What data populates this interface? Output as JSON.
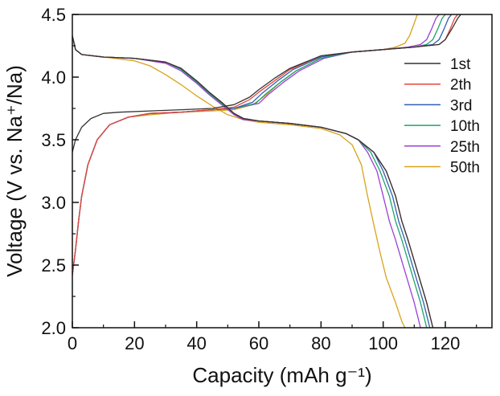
{
  "chart_data": {
    "type": "line",
    "title": "",
    "xlabel": "Capacity (mAh g⁻¹)",
    "ylabel": "Voltage (V vs. Na⁺/Na)",
    "xlim": [
      0,
      135
    ],
    "ylim": [
      2.0,
      4.5
    ],
    "x_ticks": [
      "0",
      "20",
      "40",
      "60",
      "80",
      "100",
      "120"
    ],
    "y_ticks": [
      "2.0",
      "2.5",
      "3.0",
      "3.5",
      "4.0",
      "4.5"
    ],
    "grid": false,
    "legend_position": "right",
    "series": [
      {
        "name": "1st",
        "color": "#333333",
        "charge": [
          [
            0,
            3.4
          ],
          [
            1,
            3.5
          ],
          [
            3,
            3.6
          ],
          [
            6,
            3.67
          ],
          [
            10,
            3.71
          ],
          [
            15,
            3.72
          ],
          [
            25,
            3.73
          ],
          [
            35,
            3.74
          ],
          [
            45,
            3.75
          ],
          [
            52,
            3.78
          ],
          [
            57,
            3.84
          ],
          [
            60,
            3.9
          ],
          [
            65,
            3.99
          ],
          [
            70,
            4.07
          ],
          [
            80,
            4.17
          ],
          [
            90,
            4.2
          ],
          [
            100,
            4.22
          ],
          [
            110,
            4.24
          ],
          [
            118,
            4.26
          ],
          [
            120,
            4.3
          ],
          [
            122,
            4.38
          ],
          [
            124,
            4.47
          ],
          [
            125,
            4.5
          ]
        ],
        "discharge": [
          [
            0,
            4.33
          ],
          [
            1,
            4.22
          ],
          [
            3,
            4.18
          ],
          [
            10,
            4.16
          ],
          [
            20,
            4.15
          ],
          [
            30,
            4.12
          ],
          [
            35,
            4.07
          ],
          [
            40,
            3.97
          ],
          [
            44,
            3.88
          ],
          [
            48,
            3.8
          ],
          [
            52,
            3.71
          ],
          [
            55,
            3.67
          ],
          [
            60,
            3.65
          ],
          [
            70,
            3.63
          ],
          [
            80,
            3.6
          ],
          [
            88,
            3.55
          ],
          [
            92,
            3.5
          ],
          [
            97,
            3.4
          ],
          [
            101,
            3.25
          ],
          [
            104,
            3.05
          ],
          [
            106,
            2.85
          ],
          [
            108,
            2.7
          ],
          [
            111,
            2.45
          ],
          [
            114,
            2.2
          ],
          [
            116,
            2.0
          ]
        ]
      },
      {
        "name": "2th",
        "color": "#e8453c",
        "charge": [
          [
            0,
            2.42
          ],
          [
            1,
            2.62
          ],
          [
            2,
            2.85
          ],
          [
            3,
            3.05
          ],
          [
            5,
            3.3
          ],
          [
            8,
            3.5
          ],
          [
            12,
            3.62
          ],
          [
            18,
            3.68
          ],
          [
            25,
            3.71
          ],
          [
            35,
            3.72
          ],
          [
            45,
            3.74
          ],
          [
            52,
            3.76
          ],
          [
            57,
            3.82
          ],
          [
            60,
            3.88
          ],
          [
            65,
            3.97
          ],
          [
            70,
            4.06
          ],
          [
            80,
            4.17
          ],
          [
            90,
            4.2
          ],
          [
            100,
            4.22
          ],
          [
            110,
            4.24
          ],
          [
            118,
            4.26
          ],
          [
            120,
            4.3
          ],
          [
            121.5,
            4.38
          ],
          [
            123,
            4.47
          ],
          [
            124,
            4.5
          ]
        ],
        "discharge": [
          [
            0,
            4.33
          ],
          [
            1,
            4.22
          ],
          [
            3,
            4.18
          ],
          [
            10,
            4.16
          ],
          [
            20,
            4.15
          ],
          [
            30,
            4.12
          ],
          [
            35,
            4.07
          ],
          [
            40,
            3.97
          ],
          [
            44,
            3.88
          ],
          [
            48,
            3.8
          ],
          [
            52,
            3.71
          ],
          [
            55,
            3.67
          ],
          [
            60,
            3.65
          ],
          [
            70,
            3.63
          ],
          [
            80,
            3.6
          ],
          [
            88,
            3.55
          ],
          [
            92,
            3.5
          ],
          [
            97,
            3.4
          ],
          [
            101,
            3.25
          ],
          [
            104,
            3.05
          ],
          [
            106,
            2.85
          ],
          [
            108,
            2.7
          ],
          [
            111,
            2.45
          ],
          [
            114,
            2.2
          ],
          [
            116,
            2.0
          ]
        ]
      },
      {
        "name": "3rd",
        "color": "#2f5fb3",
        "charge": [
          [
            0,
            2.42
          ],
          [
            1,
            2.62
          ],
          [
            2,
            2.85
          ],
          [
            3,
            3.05
          ],
          [
            5,
            3.3
          ],
          [
            8,
            3.5
          ],
          [
            12,
            3.62
          ],
          [
            18,
            3.68
          ],
          [
            25,
            3.71
          ],
          [
            35,
            3.72
          ],
          [
            45,
            3.74
          ],
          [
            52,
            3.75
          ],
          [
            58,
            3.8
          ],
          [
            61,
            3.87
          ],
          [
            66,
            3.97
          ],
          [
            71,
            4.06
          ],
          [
            80,
            4.16
          ],
          [
            90,
            4.2
          ],
          [
            100,
            4.22
          ],
          [
            110,
            4.24
          ],
          [
            116,
            4.26
          ],
          [
            118,
            4.3
          ],
          [
            119.5,
            4.38
          ],
          [
            121,
            4.47
          ],
          [
            122,
            4.5
          ]
        ],
        "discharge": [
          [
            0,
            4.33
          ],
          [
            1,
            4.22
          ],
          [
            3,
            4.18
          ],
          [
            10,
            4.16
          ],
          [
            20,
            4.15
          ],
          [
            30,
            4.12
          ],
          [
            35,
            4.07
          ],
          [
            40,
            3.97
          ],
          [
            44,
            3.88
          ],
          [
            48,
            3.8
          ],
          [
            52,
            3.71
          ],
          [
            55,
            3.67
          ],
          [
            60,
            3.65
          ],
          [
            70,
            3.63
          ],
          [
            80,
            3.6
          ],
          [
            88,
            3.55
          ],
          [
            92,
            3.5
          ],
          [
            97,
            3.4
          ],
          [
            100,
            3.25
          ],
          [
            103,
            3.05
          ],
          [
            105,
            2.85
          ],
          [
            107,
            2.7
          ],
          [
            110,
            2.45
          ],
          [
            113,
            2.2
          ],
          [
            115,
            2.0
          ]
        ]
      },
      {
        "name": "10th",
        "color": "#1fa36b",
        "charge": [
          [
            0,
            2.42
          ],
          [
            1,
            2.62
          ],
          [
            2,
            2.85
          ],
          [
            3,
            3.05
          ],
          [
            5,
            3.3
          ],
          [
            8,
            3.5
          ],
          [
            12,
            3.62
          ],
          [
            18,
            3.68
          ],
          [
            25,
            3.71
          ],
          [
            35,
            3.72
          ],
          [
            45,
            3.74
          ],
          [
            52,
            3.75
          ],
          [
            59,
            3.79
          ],
          [
            62,
            3.86
          ],
          [
            67,
            3.96
          ],
          [
            72,
            4.05
          ],
          [
            80,
            4.15
          ],
          [
            90,
            4.2
          ],
          [
            100,
            4.22
          ],
          [
            110,
            4.24
          ],
          [
            114,
            4.26
          ],
          [
            116,
            4.3
          ],
          [
            117.5,
            4.38
          ],
          [
            119,
            4.47
          ],
          [
            120,
            4.5
          ]
        ],
        "discharge": [
          [
            0,
            4.33
          ],
          [
            1,
            4.22
          ],
          [
            3,
            4.18
          ],
          [
            10,
            4.16
          ],
          [
            20,
            4.15
          ],
          [
            30,
            4.12
          ],
          [
            35,
            4.06
          ],
          [
            40,
            3.96
          ],
          [
            44,
            3.87
          ],
          [
            48,
            3.79
          ],
          [
            52,
            3.71
          ],
          [
            55,
            3.67
          ],
          [
            60,
            3.65
          ],
          [
            70,
            3.63
          ],
          [
            80,
            3.6
          ],
          [
            88,
            3.55
          ],
          [
            92,
            3.5
          ],
          [
            96,
            3.4
          ],
          [
            99,
            3.25
          ],
          [
            102,
            3.05
          ],
          [
            104,
            2.85
          ],
          [
            106,
            2.7
          ],
          [
            109,
            2.45
          ],
          [
            112,
            2.2
          ],
          [
            114,
            2.0
          ]
        ]
      },
      {
        "name": "25th",
        "color": "#9b3fd6",
        "charge": [
          [
            0,
            2.42
          ],
          [
            1,
            2.62
          ],
          [
            2,
            2.85
          ],
          [
            3,
            3.05
          ],
          [
            5,
            3.3
          ],
          [
            8,
            3.5
          ],
          [
            12,
            3.62
          ],
          [
            18,
            3.68
          ],
          [
            25,
            3.71
          ],
          [
            35,
            3.72
          ],
          [
            45,
            3.74
          ],
          [
            52,
            3.75
          ],
          [
            60,
            3.79
          ],
          [
            63,
            3.86
          ],
          [
            68,
            3.96
          ],
          [
            73,
            4.05
          ],
          [
            81,
            4.15
          ],
          [
            90,
            4.2
          ],
          [
            100,
            4.22
          ],
          [
            108,
            4.24
          ],
          [
            112,
            4.26
          ],
          [
            114,
            4.3
          ],
          [
            115.5,
            4.38
          ],
          [
            117,
            4.47
          ],
          [
            118,
            4.5
          ]
        ],
        "discharge": [
          [
            0,
            4.33
          ],
          [
            1,
            4.22
          ],
          [
            3,
            4.18
          ],
          [
            10,
            4.16
          ],
          [
            20,
            4.15
          ],
          [
            30,
            4.11
          ],
          [
            35,
            4.05
          ],
          [
            40,
            3.95
          ],
          [
            44,
            3.86
          ],
          [
            48,
            3.78
          ],
          [
            52,
            3.7
          ],
          [
            55,
            3.66
          ],
          [
            60,
            3.65
          ],
          [
            70,
            3.63
          ],
          [
            80,
            3.6
          ],
          [
            88,
            3.55
          ],
          [
            92,
            3.5
          ],
          [
            95,
            3.4
          ],
          [
            98,
            3.25
          ],
          [
            100,
            3.05
          ],
          [
            102,
            2.85
          ],
          [
            104,
            2.7
          ],
          [
            107,
            2.45
          ],
          [
            110,
            2.2
          ],
          [
            112,
            2.0
          ]
        ]
      },
      {
        "name": "50th",
        "color": "#d9a21b",
        "charge": [
          [
            0,
            2.42
          ],
          [
            1,
            2.62
          ],
          [
            2,
            2.85
          ],
          [
            3,
            3.05
          ],
          [
            5,
            3.3
          ],
          [
            8,
            3.5
          ],
          [
            12,
            3.62
          ],
          [
            18,
            3.68
          ],
          [
            25,
            3.7
          ],
          [
            35,
            3.72
          ],
          [
            45,
            3.73
          ],
          [
            52,
            3.74
          ],
          [
            58,
            3.78
          ],
          [
            62,
            3.85
          ],
          [
            67,
            3.96
          ],
          [
            72,
            4.05
          ],
          [
            80,
            4.15
          ],
          [
            90,
            4.2
          ],
          [
            100,
            4.22
          ],
          [
            104,
            4.24
          ],
          [
            107,
            4.27
          ],
          [
            108.5,
            4.33
          ],
          [
            110,
            4.43
          ],
          [
            111,
            4.5
          ]
        ],
        "discharge": [
          [
            0,
            4.33
          ],
          [
            1,
            4.22
          ],
          [
            3,
            4.18
          ],
          [
            10,
            4.16
          ],
          [
            20,
            4.13
          ],
          [
            25,
            4.09
          ],
          [
            30,
            4.02
          ],
          [
            35,
            3.94
          ],
          [
            40,
            3.85
          ],
          [
            45,
            3.77
          ],
          [
            50,
            3.7
          ],
          [
            55,
            3.66
          ],
          [
            60,
            3.64
          ],
          [
            70,
            3.62
          ],
          [
            80,
            3.59
          ],
          [
            86,
            3.54
          ],
          [
            90,
            3.46
          ],
          [
            93,
            3.3
          ],
          [
            95,
            3.05
          ],
          [
            97,
            2.82
          ],
          [
            99,
            2.6
          ],
          [
            101,
            2.4
          ],
          [
            104,
            2.2
          ],
          [
            106,
            2.05
          ],
          [
            107,
            2.0
          ]
        ]
      }
    ]
  }
}
